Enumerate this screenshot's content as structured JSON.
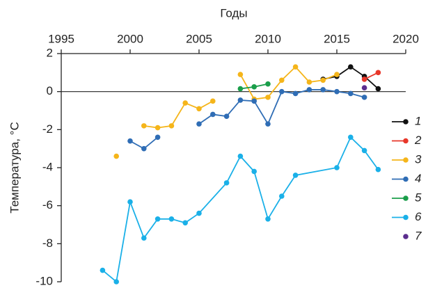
{
  "chart_data": {
    "type": "line",
    "x_label": "Годы",
    "y_label": "Температура, °C",
    "xlim": [
      1995,
      2020
    ],
    "xticks": [
      1995,
      2000,
      2005,
      2010,
      2015,
      2020
    ],
    "ylim": [
      -10,
      2
    ],
    "yticks": [
      2,
      0,
      -2,
      -4,
      -6,
      -8,
      -10
    ],
    "reference_line": 0,
    "series": [
      {
        "name": "1",
        "color": "#111111",
        "x": [
          2014,
          2015,
          2016,
          2017,
          2018
        ],
        "values": [
          0.65,
          0.8,
          1.3,
          0.8,
          0.15
        ]
      },
      {
        "name": "2",
        "color": "#e8372a",
        "x": [
          2017,
          2018
        ],
        "values": [
          0.65,
          1.0
        ]
      },
      {
        "name": "3",
        "color": "#f5b51a",
        "x": [
          1999,
          2000,
          2001,
          2002,
          2003,
          2004,
          2005,
          2006,
          2007,
          2008,
          2009,
          2010,
          2011,
          2012,
          2013,
          2014,
          2015
        ],
        "values": [
          -3.4,
          null,
          -1.8,
          -1.9,
          -1.8,
          -0.6,
          -0.9,
          -0.5,
          null,
          0.9,
          -0.4,
          -0.3,
          0.6,
          1.3,
          0.5,
          0.6,
          0.9
        ]
      },
      {
        "name": "4",
        "color": "#2f6db5",
        "x": [
          2000,
          2001,
          2002,
          2003,
          2005,
          2006,
          2007,
          2008,
          2009,
          2010,
          2011,
          2012,
          2013,
          2014,
          2015,
          2016,
          2017
        ],
        "values": [
          -2.6,
          -3.0,
          -2.4,
          null,
          -1.7,
          -1.2,
          -1.3,
          -0.45,
          -0.5,
          -1.7,
          0.0,
          -0.1,
          0.1,
          0.1,
          0.0,
          -0.1,
          -0.3
        ]
      },
      {
        "name": "5",
        "color": "#1a9e4a",
        "x": [
          2008,
          2009,
          2010
        ],
        "values": [
          0.15,
          0.25,
          0.4
        ]
      },
      {
        "name": "6",
        "color": "#1ab0e8",
        "x": [
          1998,
          1999,
          2000,
          2001,
          2002,
          2003,
          2004,
          2005,
          2007,
          2008,
          2009,
          2010,
          2011,
          2012,
          2015,
          2016,
          2017,
          2018
        ],
        "values": [
          -9.4,
          -10,
          -5.8,
          -7.7,
          -6.7,
          -6.7,
          -6.9,
          -6.4,
          -4.8,
          -3.4,
          -4.2,
          -6.7,
          -5.5,
          -4.4,
          -4.0,
          -2.4,
          -3.1,
          -4.1
        ]
      },
      {
        "name": "7",
        "color": "#5b2d8e",
        "x": [
          2017
        ],
        "values": [
          0.2
        ]
      }
    ]
  }
}
